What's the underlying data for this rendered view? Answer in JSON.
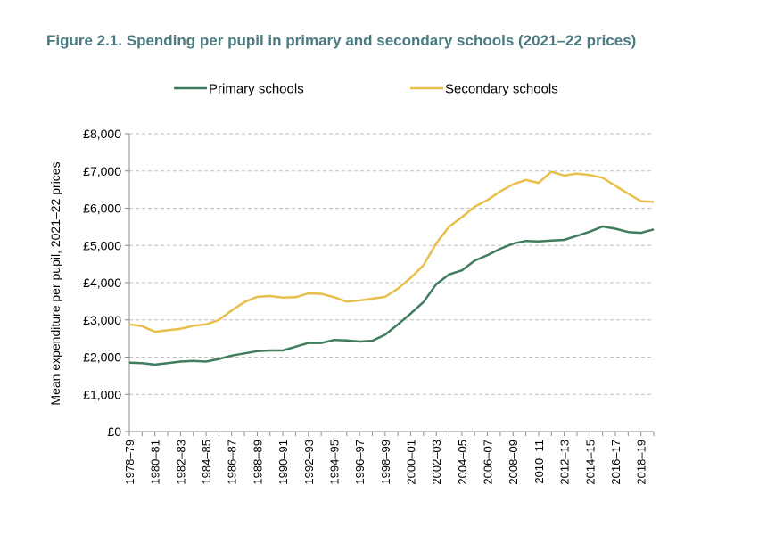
{
  "figure": {
    "title": "Figure 2.1. Spending per pupil in primary and secondary schools (2021–22 prices)"
  },
  "chart_data": {
    "type": "line",
    "title": "Figure 2.1. Spending per pupil in primary and secondary schools (2021–22 prices)",
    "xlabel": "",
    "ylabel": "Mean expenditure per pupil, 2021–22 prices",
    "ylim": [
      0,
      8000
    ],
    "y_ticks": [
      0,
      1000,
      2000,
      3000,
      4000,
      5000,
      6000,
      7000,
      8000
    ],
    "y_tick_labels": [
      "£0",
      "£1,000",
      "£2,000",
      "£3,000",
      "£4,000",
      "£5,000",
      "£6,000",
      "£7,000",
      "£8,000"
    ],
    "grid": "horizontal dashed",
    "legend_position": "top",
    "x": [
      "1978–79",
      "1979–80",
      "1980–81",
      "1981–82",
      "1982–83",
      "1983–84",
      "1984–85",
      "1985–86",
      "1986–87",
      "1987–88",
      "1988–89",
      "1989–90",
      "1990–91",
      "1991–92",
      "1992–93",
      "1993–94",
      "1994–95",
      "1995–96",
      "1996–97",
      "1997–98",
      "1998–99",
      "1999–00",
      "2000–01",
      "2001–02",
      "2002–03",
      "2003–04",
      "2004–05",
      "2005–06",
      "2006–07",
      "2007–08",
      "2008–09",
      "2009–10",
      "2010–11",
      "2011–12",
      "2012–13",
      "2013–14",
      "2014–15",
      "2015–16",
      "2016–17",
      "2017–18",
      "2018–19",
      "2019–20"
    ],
    "x_tick_labels": [
      "1978–79",
      "1980–81",
      "1982–83",
      "1984–85",
      "1986–87",
      "1988–89",
      "1990–91",
      "1992–93",
      "1994–95",
      "1996–97",
      "1998–99",
      "2000–01",
      "2002–03",
      "2004–05",
      "2006–07",
      "2008–09",
      "2010–11",
      "2012–13",
      "2014–15",
      "2016–17",
      "2018–19"
    ],
    "series": [
      {
        "name": "Primary schools",
        "color": "#3f7d5e",
        "values": [
          1850,
          1840,
          1800,
          1840,
          1880,
          1900,
          1880,
          1950,
          2040,
          2100,
          2160,
          2180,
          2180,
          2280,
          2380,
          2380,
          2460,
          2450,
          2420,
          2440,
          2600,
          2880,
          3170,
          3480,
          3960,
          4220,
          4330,
          4590,
          4740,
          4910,
          5050,
          5120,
          5110,
          5130,
          5150,
          5260,
          5370,
          5510,
          5450,
          5360,
          5340,
          5430
        ]
      },
      {
        "name": "Secondary schools",
        "color": "#e8bf4a",
        "values": [
          2880,
          2830,
          2680,
          2720,
          2760,
          2840,
          2880,
          3000,
          3250,
          3480,
          3620,
          3640,
          3600,
          3610,
          3710,
          3700,
          3610,
          3490,
          3520,
          3570,
          3620,
          3840,
          4130,
          4470,
          5060,
          5500,
          5760,
          6040,
          6220,
          6450,
          6640,
          6760,
          6680,
          6980,
          6880,
          6930,
          6890,
          6820,
          6600,
          6390,
          6190,
          6170
        ]
      }
    ]
  }
}
